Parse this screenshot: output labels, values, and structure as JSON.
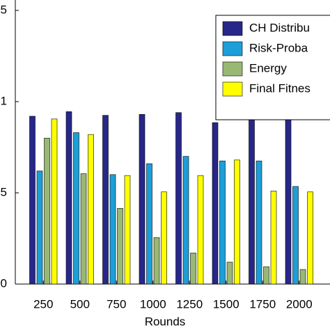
{
  "chart_data": {
    "type": "bar",
    "xlabel": "Rounds",
    "categories": [
      "250",
      "500",
      "750",
      "1000",
      "1250",
      "1500",
      "1750",
      "2000"
    ],
    "series": [
      {
        "name": "CH Distribu",
        "color": "#27278a",
        "values": [
          0.92,
          0.945,
          0.925,
          0.93,
          0.94,
          0.885,
          0.91,
          0.91
        ]
      },
      {
        "name": "Risk-Proba",
        "color": "#1c9fd8",
        "values": [
          0.62,
          0.83,
          0.6,
          0.66,
          0.7,
          0.675,
          0.675,
          0.535
        ]
      },
      {
        "name": "Energy",
        "color": "#98b874",
        "values": [
          0.8,
          0.605,
          0.415,
          0.255,
          0.17,
          0.12,
          0.095,
          0.08
        ]
      },
      {
        "name": "Final Fitnes",
        "color": "#ffff00",
        "values": [
          0.905,
          0.82,
          0.595,
          0.505,
          0.595,
          0.68,
          0.51,
          0.505
        ]
      }
    ],
    "ylim": [
      0,
      1.5
    ],
    "yticks": [
      0,
      {
        "value": 0.5,
        "label": "5"
      },
      1,
      {
        "value": 1.5,
        "label": "5"
      }
    ],
    "legend": "top-right"
  }
}
